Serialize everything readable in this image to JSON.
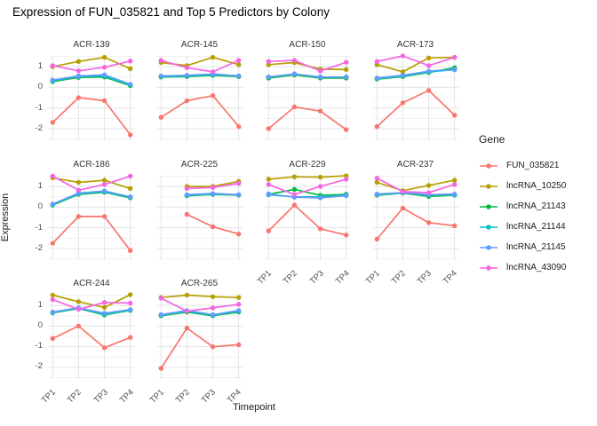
{
  "chart_data": {
    "type": "line",
    "title": "Expression of FUN_035821 and Top 5 Predictors by Colony",
    "xlabel": "Timepoint",
    "ylabel": "Expression",
    "legend_title": "Gene",
    "legend_position": "right",
    "grid": true,
    "x": [
      "TP1",
      "TP2",
      "TP3",
      "TP4"
    ],
    "yticks": [
      1,
      0,
      -1,
      -2
    ],
    "yticks_minor": [
      1.5,
      0.5,
      -0.5,
      -1.5,
      -2.5
    ],
    "ylim": [
      -2.56,
      1.52
    ],
    "series": [
      {
        "name": "FUN_035821",
        "color": "#F8766D"
      },
      {
        "name": "lncRNA_10250",
        "color": "#B79F00"
      },
      {
        "name": "lncRNA_21143",
        "color": "#00BA38"
      },
      {
        "name": "lncRNA_21144",
        "color": "#00BFC4"
      },
      {
        "name": "lncRNA_21145",
        "color": "#619CFF"
      },
      {
        "name": "lncRNA_43090",
        "color": "#F564E3"
      }
    ],
    "facets": [
      {
        "name": "ACR-139",
        "values": {
          "FUN_035821": [
            -1.7,
            -0.5,
            -0.65,
            -2.3
          ],
          "lncRNA_10250": [
            1.0,
            1.25,
            1.45,
            0.9
          ],
          "lncRNA_21143": [
            0.28,
            0.48,
            0.5,
            0.08
          ],
          "lncRNA_21144": [
            0.32,
            0.52,
            0.55,
            0.12
          ],
          "lncRNA_21145": [
            0.35,
            0.55,
            0.6,
            0.15
          ],
          "lncRNA_43090": [
            1.05,
            0.8,
            0.97,
            1.27
          ]
        }
      },
      {
        "name": "ACR-145",
        "values": {
          "FUN_035821": [
            -1.45,
            -0.65,
            -0.4,
            -1.9
          ],
          "lncRNA_10250": [
            1.2,
            1.05,
            1.45,
            1.1
          ],
          "lncRNA_21143": [
            0.5,
            0.52,
            0.58,
            0.52
          ],
          "lncRNA_21144": [
            0.53,
            0.55,
            0.62,
            0.55
          ],
          "lncRNA_21145": [
            0.55,
            0.58,
            0.65,
            0.55
          ],
          "lncRNA_43090": [
            1.3,
            0.95,
            0.75,
            1.3
          ]
        }
      },
      {
        "name": "ACR-150",
        "values": {
          "FUN_035821": [
            -2.0,
            -0.95,
            -1.15,
            -2.05
          ],
          "lncRNA_10250": [
            1.1,
            1.2,
            0.88,
            0.86
          ],
          "lncRNA_21143": [
            0.45,
            0.6,
            0.45,
            0.45
          ],
          "lncRNA_21144": [
            0.5,
            0.64,
            0.5,
            0.5
          ],
          "lncRNA_21145": [
            0.5,
            0.65,
            0.5,
            0.5
          ],
          "lncRNA_43090": [
            1.25,
            1.3,
            0.79,
            1.21
          ]
        }
      },
      {
        "name": "ACR-173",
        "values": {
          "FUN_035821": [
            -1.9,
            -0.75,
            -0.15,
            -1.35
          ],
          "lncRNA_10250": [
            1.1,
            0.75,
            1.42,
            1.45
          ],
          "lncRNA_21143": [
            0.4,
            0.52,
            0.72,
            0.95
          ],
          "lncRNA_21144": [
            0.42,
            0.55,
            0.75,
            0.85
          ],
          "lncRNA_21145": [
            0.45,
            0.58,
            0.78,
            0.87
          ],
          "lncRNA_43090": [
            1.25,
            1.52,
            1.05,
            1.45
          ]
        }
      },
      {
        "name": "ACR-186",
        "values": {
          "FUN_035821": [
            -1.75,
            -0.45,
            -0.45,
            -2.1
          ],
          "lncRNA_10250": [
            1.42,
            1.2,
            1.3,
            0.9
          ],
          "lncRNA_21143": [
            0.1,
            0.62,
            0.72,
            0.45
          ],
          "lncRNA_21144": [
            0.13,
            0.65,
            0.75,
            0.48
          ],
          "lncRNA_21145": [
            0.15,
            0.68,
            0.78,
            0.5
          ],
          "lncRNA_43090": [
            1.5,
            0.82,
            1.1,
            1.5
          ]
        }
      },
      {
        "name": "ACR-225",
        "values": {
          "FUN_035821": [
            null,
            -0.35,
            -0.95,
            -1.3
          ],
          "lncRNA_10250": [
            null,
            1.0,
            1.0,
            1.25
          ],
          "lncRNA_21143": [
            null,
            0.55,
            0.62,
            0.58
          ],
          "lncRNA_21144": [
            null,
            0.57,
            0.64,
            0.6
          ],
          "lncRNA_21145": [
            null,
            0.6,
            0.66,
            0.6
          ],
          "lncRNA_43090": [
            null,
            0.9,
            0.95,
            1.15
          ]
        }
      },
      {
        "name": "ACR-229",
        "values": {
          "FUN_035821": [
            -1.15,
            0.1,
            -1.05,
            -1.35
          ],
          "lncRNA_10250": [
            1.35,
            1.47,
            1.45,
            1.52
          ],
          "lncRNA_21143": [
            0.62,
            0.86,
            0.57,
            0.62
          ],
          "lncRNA_21144": [
            0.6,
            0.5,
            0.5,
            0.58
          ],
          "lncRNA_21145": [
            0.64,
            0.48,
            0.45,
            0.55
          ],
          "lncRNA_43090": [
            1.1,
            0.61,
            1.0,
            1.35
          ]
        }
      },
      {
        "name": "ACR-237",
        "values": {
          "FUN_035821": [
            -1.55,
            -0.05,
            -0.75,
            -0.9
          ],
          "lncRNA_10250": [
            1.2,
            0.8,
            1.05,
            1.3
          ],
          "lncRNA_21143": [
            0.58,
            0.68,
            0.52,
            0.58
          ],
          "lncRNA_21144": [
            0.6,
            0.7,
            0.58,
            0.6
          ],
          "lncRNA_21145": [
            0.63,
            0.7,
            0.6,
            0.63
          ],
          "lncRNA_43090": [
            1.4,
            0.75,
            0.7,
            1.1
          ]
        }
      },
      {
        "name": "ACR-244",
        "values": {
          "FUN_035821": [
            -0.6,
            0.0,
            -1.05,
            -0.55
          ],
          "lncRNA_10250": [
            1.5,
            1.18,
            0.9,
            1.52
          ],
          "lncRNA_21143": [
            0.64,
            0.85,
            0.54,
            0.76
          ],
          "lncRNA_21144": [
            0.66,
            0.87,
            0.58,
            0.78
          ],
          "lncRNA_21145": [
            0.68,
            0.88,
            0.62,
            0.8
          ],
          "lncRNA_43090": [
            1.28,
            0.81,
            1.14,
            1.11
          ]
        }
      },
      {
        "name": "ACR-265",
        "values": {
          "FUN_035821": [
            -2.05,
            -0.1,
            -1.0,
            -0.9
          ],
          "lncRNA_10250": [
            1.38,
            1.5,
            1.42,
            1.38
          ],
          "lncRNA_21143": [
            0.5,
            0.68,
            0.5,
            0.68
          ],
          "lncRNA_21144": [
            0.53,
            0.72,
            0.53,
            0.72
          ],
          "lncRNA_21145": [
            0.55,
            0.75,
            0.55,
            0.75
          ],
          "lncRNA_43090": [
            1.35,
            0.72,
            0.88,
            1.05
          ]
        }
      }
    ],
    "colors": {
      "major_gridline": "#e3e3e3",
      "minor_gridline": "#f1f1f1",
      "tick_text": "#4d4d4d",
      "background": "#ffffff"
    }
  }
}
